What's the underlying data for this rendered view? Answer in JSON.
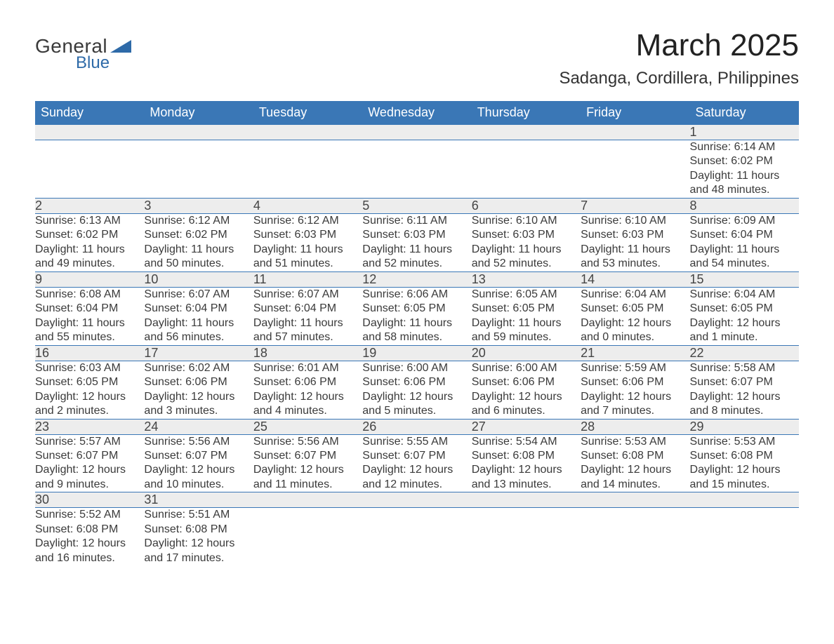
{
  "logo": {
    "word1": "General",
    "word2": "Blue"
  },
  "title": "March 2025",
  "location": "Sadanga, Cordillera, Philippines",
  "colors": {
    "header_bg": "#3a77b6",
    "header_fg": "#ffffff",
    "daynum_bg": "#ededed",
    "row_divider": "#3a77b6",
    "text": "#3a3a3a",
    "logo_blue": "#2e6aa8",
    "page_bg": "#ffffff"
  },
  "typography": {
    "title_fontsize": 44,
    "location_fontsize": 24,
    "header_fontsize": 18,
    "daynum_fontsize": 18,
    "detail_fontsize": 16,
    "font_family": "Arial"
  },
  "calendar": {
    "type": "table",
    "columns": [
      "Sunday",
      "Monday",
      "Tuesday",
      "Wednesday",
      "Thursday",
      "Friday",
      "Saturday"
    ],
    "weeks": [
      [
        null,
        null,
        null,
        null,
        null,
        null,
        {
          "day": "1",
          "sunrise": "Sunrise: 6:14 AM",
          "sunset": "Sunset: 6:02 PM",
          "daylight1": "Daylight: 11 hours",
          "daylight2": "and 48 minutes."
        }
      ],
      [
        {
          "day": "2",
          "sunrise": "Sunrise: 6:13 AM",
          "sunset": "Sunset: 6:02 PM",
          "daylight1": "Daylight: 11 hours",
          "daylight2": "and 49 minutes."
        },
        {
          "day": "3",
          "sunrise": "Sunrise: 6:12 AM",
          "sunset": "Sunset: 6:02 PM",
          "daylight1": "Daylight: 11 hours",
          "daylight2": "and 50 minutes."
        },
        {
          "day": "4",
          "sunrise": "Sunrise: 6:12 AM",
          "sunset": "Sunset: 6:03 PM",
          "daylight1": "Daylight: 11 hours",
          "daylight2": "and 51 minutes."
        },
        {
          "day": "5",
          "sunrise": "Sunrise: 6:11 AM",
          "sunset": "Sunset: 6:03 PM",
          "daylight1": "Daylight: 11 hours",
          "daylight2": "and 52 minutes."
        },
        {
          "day": "6",
          "sunrise": "Sunrise: 6:10 AM",
          "sunset": "Sunset: 6:03 PM",
          "daylight1": "Daylight: 11 hours",
          "daylight2": "and 52 minutes."
        },
        {
          "day": "7",
          "sunrise": "Sunrise: 6:10 AM",
          "sunset": "Sunset: 6:03 PM",
          "daylight1": "Daylight: 11 hours",
          "daylight2": "and 53 minutes."
        },
        {
          "day": "8",
          "sunrise": "Sunrise: 6:09 AM",
          "sunset": "Sunset: 6:04 PM",
          "daylight1": "Daylight: 11 hours",
          "daylight2": "and 54 minutes."
        }
      ],
      [
        {
          "day": "9",
          "sunrise": "Sunrise: 6:08 AM",
          "sunset": "Sunset: 6:04 PM",
          "daylight1": "Daylight: 11 hours",
          "daylight2": "and 55 minutes."
        },
        {
          "day": "10",
          "sunrise": "Sunrise: 6:07 AM",
          "sunset": "Sunset: 6:04 PM",
          "daylight1": "Daylight: 11 hours",
          "daylight2": "and 56 minutes."
        },
        {
          "day": "11",
          "sunrise": "Sunrise: 6:07 AM",
          "sunset": "Sunset: 6:04 PM",
          "daylight1": "Daylight: 11 hours",
          "daylight2": "and 57 minutes."
        },
        {
          "day": "12",
          "sunrise": "Sunrise: 6:06 AM",
          "sunset": "Sunset: 6:05 PM",
          "daylight1": "Daylight: 11 hours",
          "daylight2": "and 58 minutes."
        },
        {
          "day": "13",
          "sunrise": "Sunrise: 6:05 AM",
          "sunset": "Sunset: 6:05 PM",
          "daylight1": "Daylight: 11 hours",
          "daylight2": "and 59 minutes."
        },
        {
          "day": "14",
          "sunrise": "Sunrise: 6:04 AM",
          "sunset": "Sunset: 6:05 PM",
          "daylight1": "Daylight: 12 hours",
          "daylight2": "and 0 minutes."
        },
        {
          "day": "15",
          "sunrise": "Sunrise: 6:04 AM",
          "sunset": "Sunset: 6:05 PM",
          "daylight1": "Daylight: 12 hours",
          "daylight2": "and 1 minute."
        }
      ],
      [
        {
          "day": "16",
          "sunrise": "Sunrise: 6:03 AM",
          "sunset": "Sunset: 6:05 PM",
          "daylight1": "Daylight: 12 hours",
          "daylight2": "and 2 minutes."
        },
        {
          "day": "17",
          "sunrise": "Sunrise: 6:02 AM",
          "sunset": "Sunset: 6:06 PM",
          "daylight1": "Daylight: 12 hours",
          "daylight2": "and 3 minutes."
        },
        {
          "day": "18",
          "sunrise": "Sunrise: 6:01 AM",
          "sunset": "Sunset: 6:06 PM",
          "daylight1": "Daylight: 12 hours",
          "daylight2": "and 4 minutes."
        },
        {
          "day": "19",
          "sunrise": "Sunrise: 6:00 AM",
          "sunset": "Sunset: 6:06 PM",
          "daylight1": "Daylight: 12 hours",
          "daylight2": "and 5 minutes."
        },
        {
          "day": "20",
          "sunrise": "Sunrise: 6:00 AM",
          "sunset": "Sunset: 6:06 PM",
          "daylight1": "Daylight: 12 hours",
          "daylight2": "and 6 minutes."
        },
        {
          "day": "21",
          "sunrise": "Sunrise: 5:59 AM",
          "sunset": "Sunset: 6:06 PM",
          "daylight1": "Daylight: 12 hours",
          "daylight2": "and 7 minutes."
        },
        {
          "day": "22",
          "sunrise": "Sunrise: 5:58 AM",
          "sunset": "Sunset: 6:07 PM",
          "daylight1": "Daylight: 12 hours",
          "daylight2": "and 8 minutes."
        }
      ],
      [
        {
          "day": "23",
          "sunrise": "Sunrise: 5:57 AM",
          "sunset": "Sunset: 6:07 PM",
          "daylight1": "Daylight: 12 hours",
          "daylight2": "and 9 minutes."
        },
        {
          "day": "24",
          "sunrise": "Sunrise: 5:56 AM",
          "sunset": "Sunset: 6:07 PM",
          "daylight1": "Daylight: 12 hours",
          "daylight2": "and 10 minutes."
        },
        {
          "day": "25",
          "sunrise": "Sunrise: 5:56 AM",
          "sunset": "Sunset: 6:07 PM",
          "daylight1": "Daylight: 12 hours",
          "daylight2": "and 11 minutes."
        },
        {
          "day": "26",
          "sunrise": "Sunrise: 5:55 AM",
          "sunset": "Sunset: 6:07 PM",
          "daylight1": "Daylight: 12 hours",
          "daylight2": "and 12 minutes."
        },
        {
          "day": "27",
          "sunrise": "Sunrise: 5:54 AM",
          "sunset": "Sunset: 6:08 PM",
          "daylight1": "Daylight: 12 hours",
          "daylight2": "and 13 minutes."
        },
        {
          "day": "28",
          "sunrise": "Sunrise: 5:53 AM",
          "sunset": "Sunset: 6:08 PM",
          "daylight1": "Daylight: 12 hours",
          "daylight2": "and 14 minutes."
        },
        {
          "day": "29",
          "sunrise": "Sunrise: 5:53 AM",
          "sunset": "Sunset: 6:08 PM",
          "daylight1": "Daylight: 12 hours",
          "daylight2": "and 15 minutes."
        }
      ],
      [
        {
          "day": "30",
          "sunrise": "Sunrise: 5:52 AM",
          "sunset": "Sunset: 6:08 PM",
          "daylight1": "Daylight: 12 hours",
          "daylight2": "and 16 minutes."
        },
        {
          "day": "31",
          "sunrise": "Sunrise: 5:51 AM",
          "sunset": "Sunset: 6:08 PM",
          "daylight1": "Daylight: 12 hours",
          "daylight2": "and 17 minutes."
        },
        null,
        null,
        null,
        null,
        null
      ]
    ]
  }
}
